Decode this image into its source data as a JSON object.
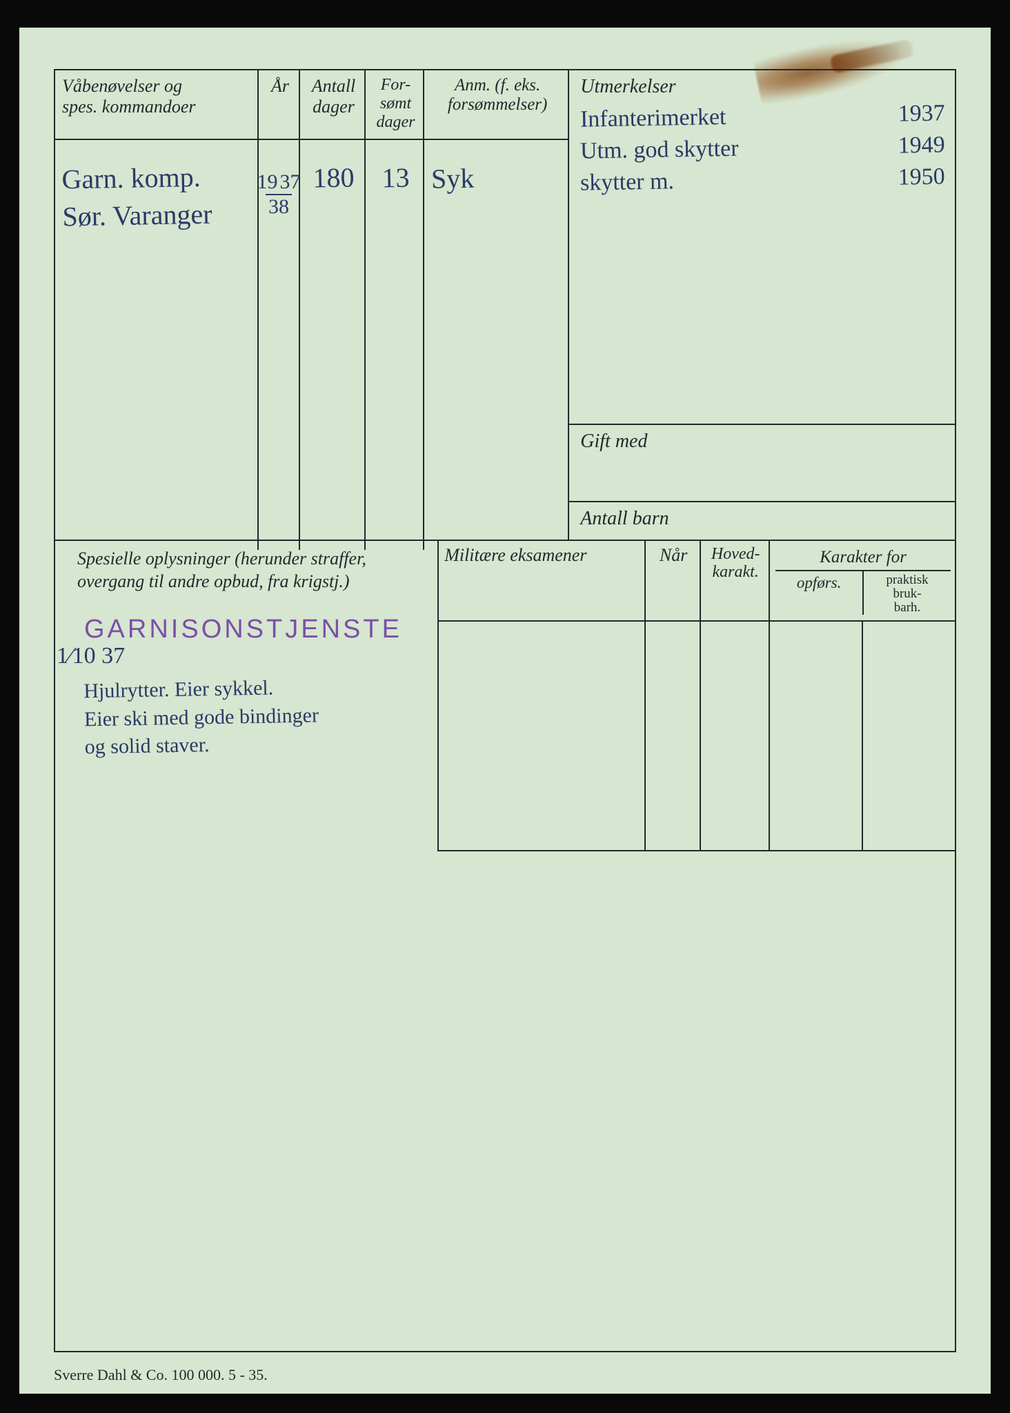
{
  "palette": {
    "paper": "#d6e6d0",
    "ink": "#1d2a2a",
    "pen": "#2a3a66",
    "stamp": "#7b4fa8",
    "scan_bg": "#0a0a0a"
  },
  "top_left": {
    "headers": {
      "c1": "Våbenøvelser og\nspes. kommandoer",
      "c2": "År",
      "c3": "Antall\ndager",
      "c4": "For-\nsømt\ndager",
      "c5": "Anm. (f. eks.\nforsømmelser)"
    },
    "row": {
      "desc": "Garn. komp.\nSør. Varanger",
      "year_prefix": "19",
      "year_top": "37",
      "year_bot": "38",
      "antall": "180",
      "forsomt": "13",
      "anm": "Syk"
    }
  },
  "utmerkelser": {
    "header": "Utmerkelser",
    "lines": [
      {
        "text": "Infanterimerket",
        "year": "1937"
      },
      {
        "text": "Utm. god skytter",
        "year": "1949"
      },
      {
        "text": "skytter m.",
        "year": "1950"
      }
    ]
  },
  "gift_med_label": "Gift med",
  "antall_barn_label": "Antall barn",
  "spesielle": {
    "header": "Spesielle oplysninger (herunder straffer,\novergang til andre opbud, fra krigstj.)",
    "stamp": "GARNISONSTJENSTE",
    "stamp_date": "1⁄10 37",
    "handwriting": "Hjulrytter. Eier sykkel.\nEier ski med gode bindinger\nog solid staver."
  },
  "eksamener": {
    "h_mil": "Militære eksamener",
    "h_naar": "Når",
    "h_hoved": "Hoved-\nkarakt.",
    "h_kar": "Karakter for",
    "h_opf": "opførs.",
    "h_prakt": "praktisk\nbruk-\nbarh."
  },
  "footer": "Sverre Dahl & Co.   100 000.   5 - 35."
}
